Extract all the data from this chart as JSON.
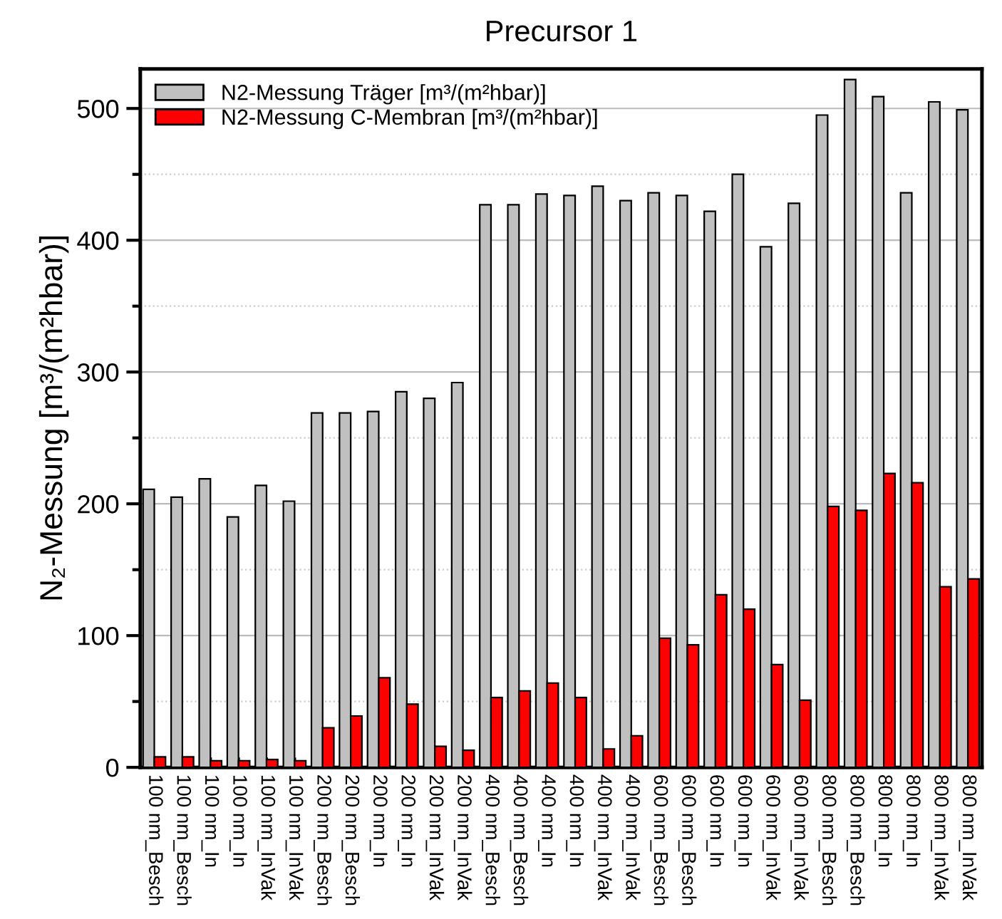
{
  "chart_data": {
    "type": "bar",
    "title": "Precursor 1",
    "ylabel": "N₂-Messung [m³/(m²hbar)]",
    "categories": [
      "100 nm_Besch",
      "100 nm_Besch",
      "100 nm_In",
      "100 nm_In",
      "100 nm_InVak",
      "100 nm_InVak",
      "200 nm_Besch",
      "200 nm_Besch",
      "200 nm_In",
      "200 nm_In",
      "200 nm_InVak",
      "200 nm_InVak",
      "400 nm_Besch",
      "400 nm_Besch",
      "400 nm_In",
      "400 nm_In",
      "400 nm_InVak",
      "400 nm_InVak",
      "600 nm_Besch",
      "600 nm_Besch",
      "600 nm_In",
      "600 nm_In",
      "600 nm_InVak",
      "600 nm_InVak",
      "800 nm_Besch",
      "800 nm_Besch",
      "800 nm_In",
      "800 nm_In",
      "800 nm_InVak",
      "800 nm_InVak"
    ],
    "series": [
      {
        "name": "N2-Messung Träger [m³/(m²hbar)]",
        "color": "#c0c0c0",
        "values": [
          211,
          205,
          219,
          190,
          214,
          202,
          269,
          269,
          270,
          285,
          280,
          292,
          427,
          427,
          435,
          434,
          441,
          430,
          436,
          434,
          422,
          450,
          395,
          428,
          495,
          522,
          509,
          436,
          505,
          499
        ]
      },
      {
        "name": "N2-Messung C-Membran [m³/(m²hbar)]",
        "color": "#ff0000",
        "values": [
          8,
          8,
          5,
          5,
          6,
          5,
          30,
          39,
          68,
          48,
          16,
          13,
          53,
          58,
          64,
          53,
          14,
          24,
          98,
          93,
          131,
          120,
          78,
          51,
          198,
          195,
          223,
          216,
          137,
          143
        ]
      }
    ],
    "ylim": [
      0,
      530
    ],
    "yticks": [
      0,
      100,
      200,
      300,
      400,
      500
    ],
    "grid": "y",
    "legend": "top left"
  }
}
